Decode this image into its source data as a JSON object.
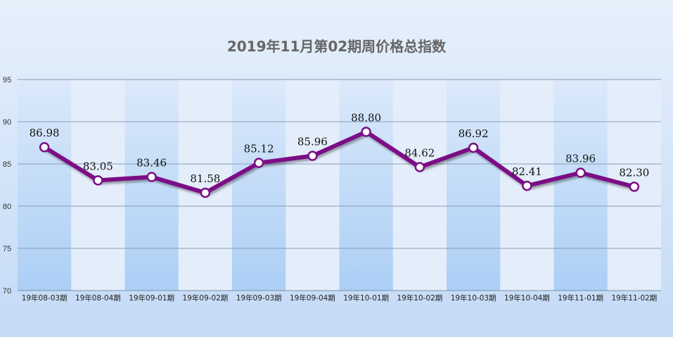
{
  "chart_data": {
    "type": "line",
    "title": "2019年11月第02期周价格总指数",
    "xlabel": "",
    "ylabel": "",
    "categories": [
      "19年08-03期",
      "19年08-04期",
      "19年09-01期",
      "19年09-02期",
      "19年09-03期",
      "19年09-04期",
      "19年10-01期",
      "19年10-02期",
      "19年10-03期",
      "19年10-04期",
      "19年11-01期",
      "19年11-02期"
    ],
    "values": [
      86.98,
      83.05,
      83.46,
      81.58,
      85.12,
      85.96,
      88.8,
      84.62,
      86.92,
      82.41,
      83.96,
      82.3
    ],
    "value_labels": [
      "86.98",
      "83.05",
      "83.46",
      "81.58",
      "85.12",
      "85.96",
      "88.80",
      "84.62",
      "86.92",
      "82.41",
      "83.96",
      "82.30"
    ],
    "ylim": [
      70,
      95
    ],
    "yticks": [
      "70",
      "75",
      "80",
      "85",
      "90",
      "95"
    ],
    "grid": true,
    "colors": {
      "line": "#7b0f85",
      "marker_fill": "#ffffff",
      "band": "#a9cdf5",
      "grid": "#8a9cb8"
    }
  }
}
